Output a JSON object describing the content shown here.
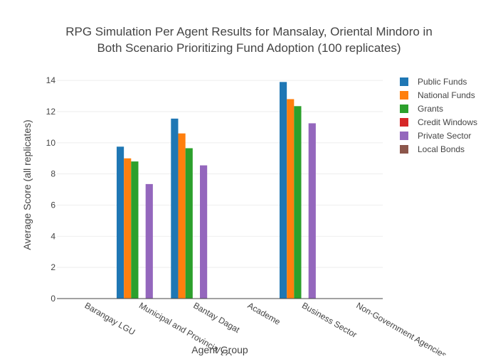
{
  "chart_data": {
    "type": "bar",
    "title_lines": [
      "RPG Simulation Per Agent Results for Mansalay, Oriental Mindoro in",
      "Both Scenario Prioritizing Fund Adoption (100 replicates)"
    ],
    "xlabel": "Agent Group",
    "ylabel": "Average Score (all replicates)",
    "ylim": [
      0,
      14.6
    ],
    "yticks": [
      0,
      2,
      4,
      6,
      8,
      10,
      12,
      14
    ],
    "grid": true,
    "legend_position": "top-right",
    "categories": [
      "Barangay LGU",
      "Municipal and Provincial LGU",
      "Bantay Dagat",
      "Academe",
      "Business Sector",
      "Non-Government Agencies"
    ],
    "series": [
      {
        "name": "Public Funds",
        "color": "#1f77b4",
        "values": [
          null,
          9.75,
          11.55,
          null,
          13.9,
          null
        ]
      },
      {
        "name": "National Funds",
        "color": "#ff7f0e",
        "values": [
          null,
          9.0,
          10.6,
          null,
          12.8,
          null
        ]
      },
      {
        "name": "Grants",
        "color": "#2ca02c",
        "values": [
          null,
          8.8,
          9.65,
          null,
          12.35,
          null
        ]
      },
      {
        "name": "Credit Windows",
        "color": "#d62728",
        "values": [
          null,
          null,
          null,
          null,
          null,
          null
        ]
      },
      {
        "name": "Private Sector",
        "color": "#9467bd",
        "values": [
          null,
          7.35,
          8.55,
          null,
          11.25,
          null
        ]
      },
      {
        "name": "Local Bonds",
        "color": "#8c564b",
        "values": [
          null,
          null,
          null,
          null,
          null,
          null
        ]
      }
    ]
  }
}
